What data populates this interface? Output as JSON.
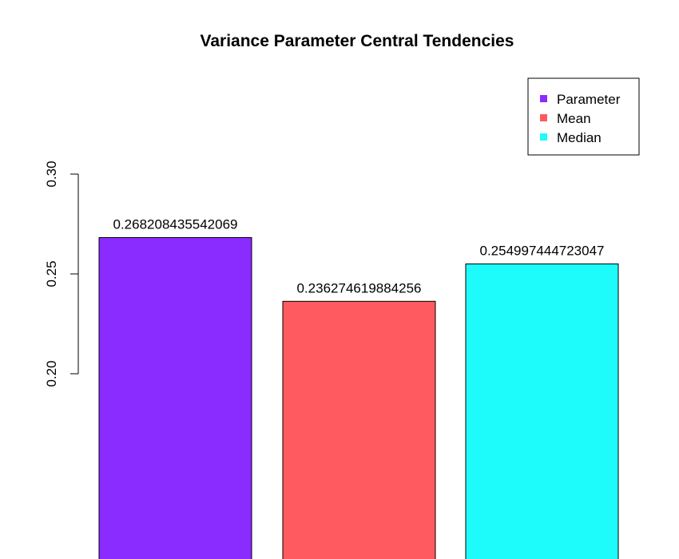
{
  "chart_data": {
    "type": "bar",
    "title": "Variance Parameter Central Tendencies",
    "xlabel": "",
    "ylabel": "",
    "categories": [
      "Parameter",
      "Mean",
      "Median"
    ],
    "values": [
      0.268208435542069,
      0.236274619884256,
      0.254997444723047
    ],
    "data_labels": [
      "0.268208435542069",
      "0.236274619884256",
      "0.254997444723047"
    ],
    "colors": [
      "#8A2BFF",
      "#FF5A5F",
      "#1EFBFB"
    ],
    "ylim": [
      0.2,
      0.3
    ],
    "y_ticks": [
      0.2,
      0.25,
      0.3
    ],
    "y_tick_labels": [
      "0.20",
      "0.25",
      "0.30"
    ],
    "grid": false,
    "legend": {
      "position": "top-right",
      "entries": [
        "Parameter",
        "Mean",
        "Median"
      ]
    }
  }
}
